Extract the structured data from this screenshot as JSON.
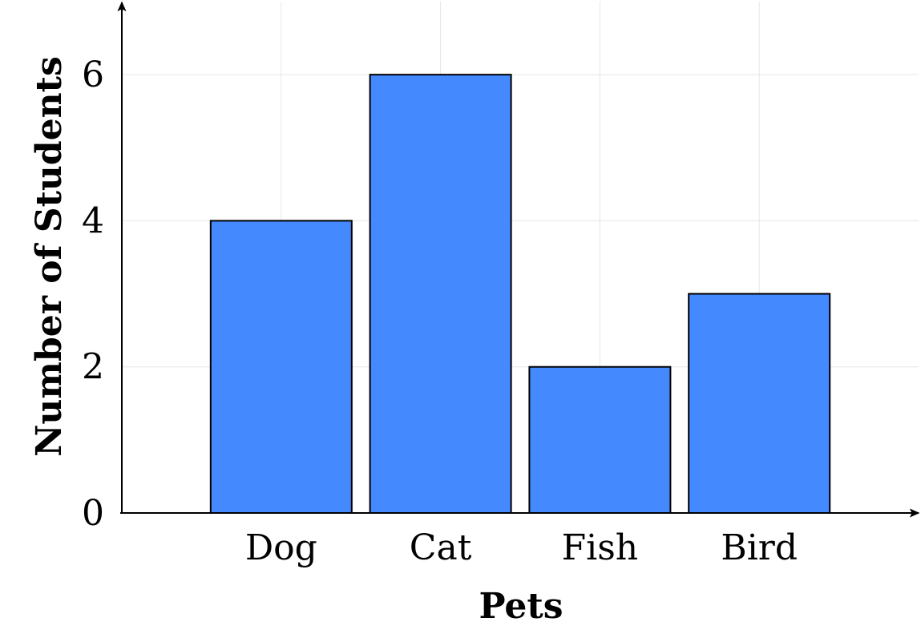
{
  "chart_data": {
    "type": "bar",
    "title": "",
    "categories": [
      "Dog",
      "Cat",
      "Fish",
      "Bird"
    ],
    "values": [
      4,
      6,
      2,
      3
    ],
    "xlabel": "Pets",
    "ylabel": "Number of Students",
    "ylim": [
      0,
      7
    ],
    "y_ticks": [
      0,
      2,
      4,
      6
    ],
    "x_range": [
      -1,
      4
    ],
    "grid": true,
    "bar_color": "#4589ff",
    "bar_edge_color": "#000000",
    "grid_color": "#e6e6e6"
  }
}
